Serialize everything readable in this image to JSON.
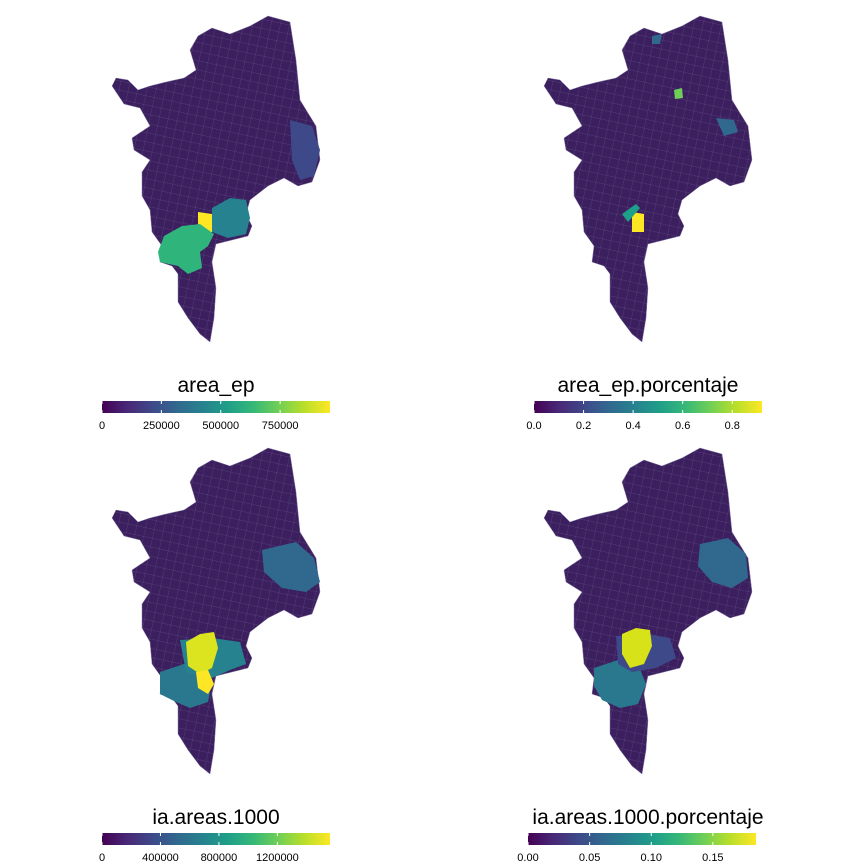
{
  "figure": {
    "panels": [
      {
        "legend_title": "area_ep",
        "tick_labels": [
          "0",
          "250000",
          "500000",
          "750000"
        ],
        "tick_values": [
          0,
          250000,
          500000,
          750000
        ],
        "scale_min": 0,
        "scale_max": 960000,
        "highlights": [
          {
            "zone": "south-center block",
            "level": 1.0
          },
          {
            "zone": "southwest large area",
            "level": 0.6
          },
          {
            "zone": "east of south-center",
            "level": 0.45
          }
        ]
      },
      {
        "legend_title": "area_ep.porcentaje",
        "tick_labels": [
          "0.0",
          "0.2",
          "0.4",
          "0.6",
          "0.8"
        ],
        "tick_values": [
          0.0,
          0.2,
          0.4,
          0.6,
          0.8
        ],
        "scale_min": 0,
        "scale_max": 0.92,
        "highlights": [
          {
            "zone": "south-center block",
            "level": 1.0
          },
          {
            "zone": "northeast small block",
            "level": 0.8
          },
          {
            "zone": "diagonal strip",
            "level": 0.55
          }
        ]
      },
      {
        "legend_title": "ia.areas.1000",
        "tick_labels": [
          "0",
          "400000",
          "800000",
          "1200000"
        ],
        "tick_values": [
          0,
          400000,
          800000,
          1200000
        ],
        "scale_min": 0,
        "scale_max": 1560000,
        "highlights": [
          {
            "zone": "south-center block",
            "level": 0.95
          },
          {
            "zone": "south-center lower",
            "level": 1.0
          },
          {
            "zone": "east region",
            "level": 0.4
          },
          {
            "zone": "southwest large area",
            "level": 0.4
          }
        ]
      },
      {
        "legend_title": "ia.areas.1000.porcentaje",
        "tick_labels": [
          "0.00",
          "0.05",
          "0.10",
          "0.15"
        ],
        "tick_values": [
          0.0,
          0.05,
          0.1,
          0.15
        ],
        "scale_min": 0,
        "scale_max": 0.185,
        "highlights": [
          {
            "zone": "south-center block",
            "level": 0.95
          },
          {
            "zone": "east region",
            "level": 0.35
          },
          {
            "zone": "southwest large area",
            "level": 0.42
          }
        ]
      }
    ],
    "colors": {
      "viridis": [
        "#440154",
        "#482878",
        "#3e4989",
        "#31688e",
        "#26828e",
        "#1f9e89",
        "#35b779",
        "#6ece58",
        "#b5de2b",
        "#fde725"
      ],
      "base_fill": "#3b1f5e",
      "border": "#8a7fa8"
    }
  }
}
